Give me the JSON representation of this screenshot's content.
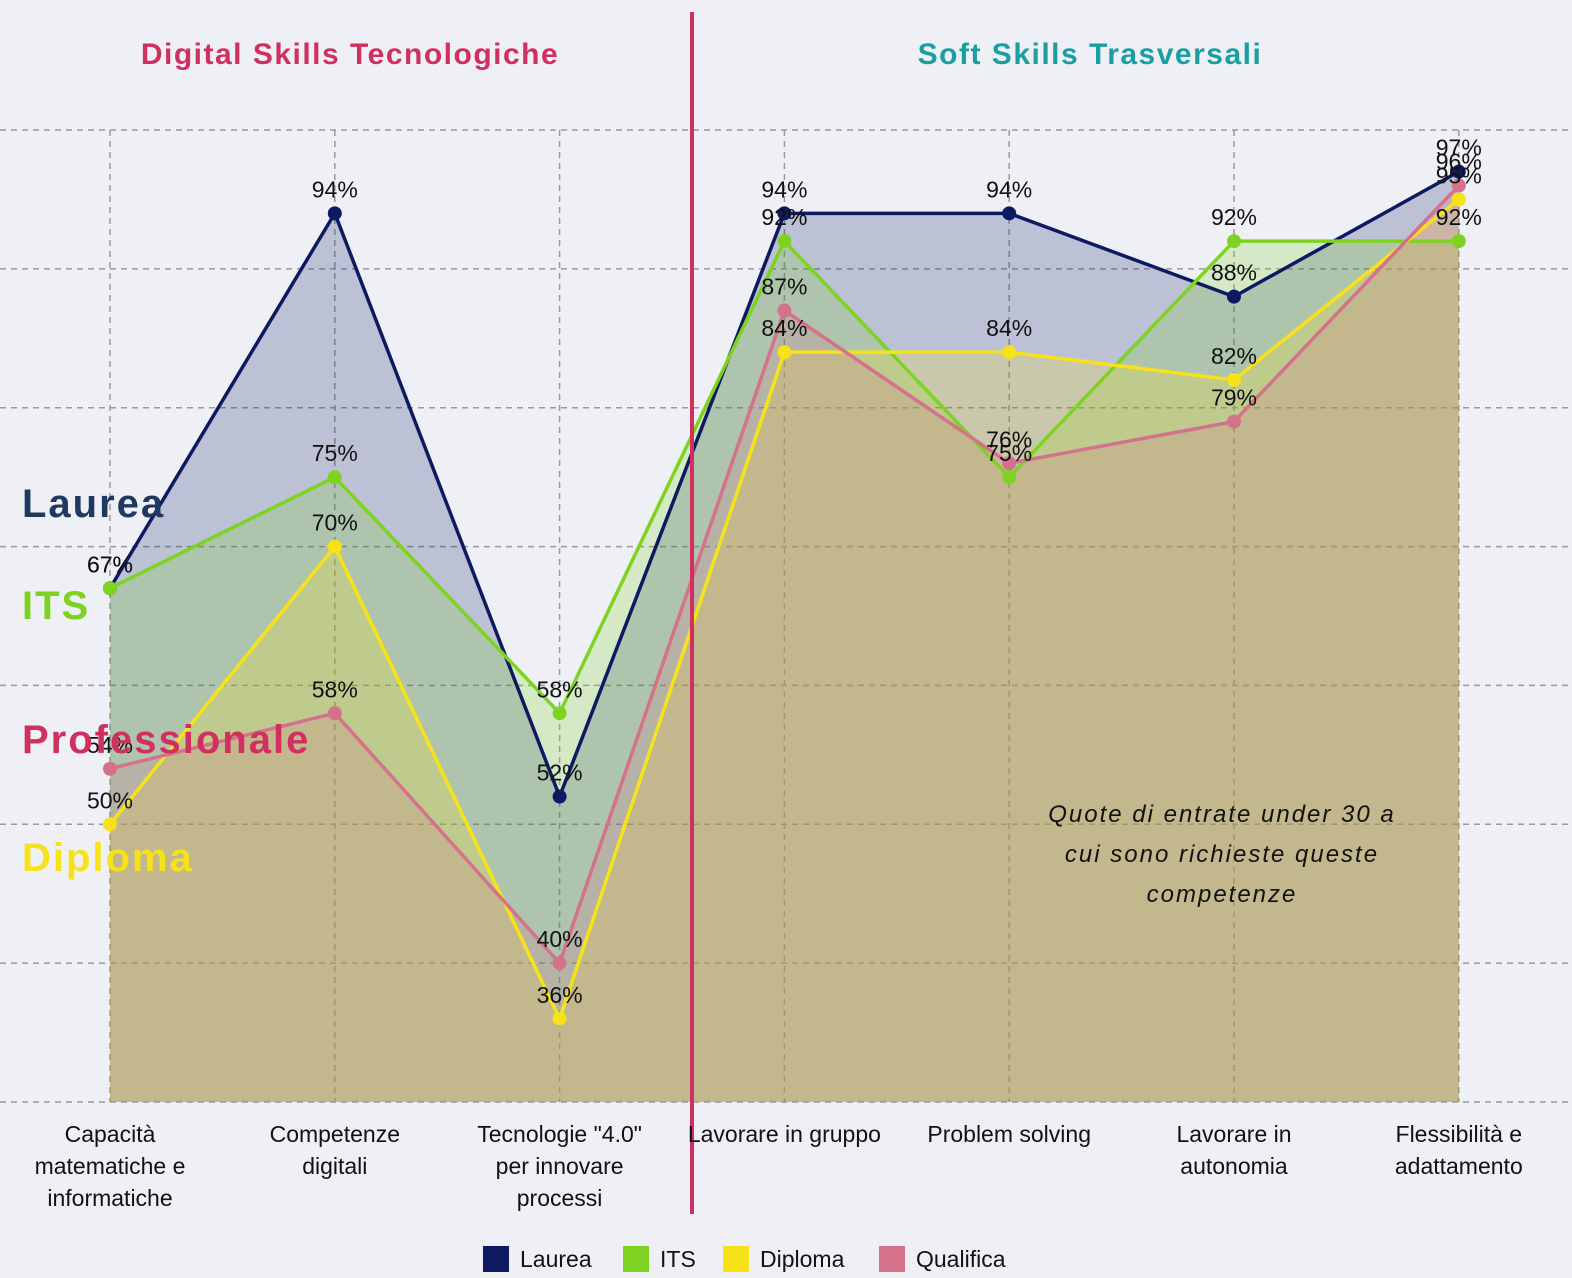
{
  "chart_data": {
    "type": "line",
    "section_titles": [
      "Digital Skills Tecnologiche",
      "Soft Skills Trasversali"
    ],
    "side_labels": [
      "Laurea",
      "ITS",
      "Professionale",
      "Diploma"
    ],
    "note": "Quote di entrate under 30 a cui sono richieste queste competenze",
    "categories": [
      "Capacità matematiche e informatiche",
      "Competenze digitali",
      "Tecnologie \"4.0\" per innovare processi",
      "Lavorare in gruppo",
      "Problem solving",
      "Lavorare in autonomia",
      "Flessibilità e adattamento"
    ],
    "series": [
      {
        "name": "Laurea",
        "color": "#0d1a62",
        "values": [
          67,
          94,
          52,
          94,
          94,
          88,
          97
        ],
        "value_labels": [
          "67%",
          "94%",
          "52%",
          "94%",
          "94%",
          "88%",
          "97%"
        ]
      },
      {
        "name": "ITS",
        "color": "#7ed321",
        "values": [
          67,
          75,
          58,
          92,
          75,
          92,
          92
        ],
        "value_labels": [
          "67%",
          "75%",
          "58%",
          "92%",
          "75%",
          "92%",
          "92%"
        ]
      },
      {
        "name": "Diploma",
        "color": "#f7e21a",
        "values": [
          50,
          70,
          36,
          84,
          84,
          82,
          95
        ],
        "value_labels": [
          "50%",
          "70%",
          "36%",
          "84%",
          "84%",
          "82%",
          "95%"
        ]
      },
      {
        "name": "Qualifica",
        "color": "#d4728c",
        "values": [
          54,
          58,
          40,
          87,
          76,
          79,
          96
        ],
        "value_labels": [
          "54%",
          "58%",
          "40%",
          "87%",
          "76%",
          "79%",
          "96%"
        ]
      }
    ],
    "ylim": [
      30,
      100
    ],
    "yticks": [
      30,
      40,
      50,
      60,
      70,
      80,
      90,
      100
    ],
    "grid": true
  }
}
